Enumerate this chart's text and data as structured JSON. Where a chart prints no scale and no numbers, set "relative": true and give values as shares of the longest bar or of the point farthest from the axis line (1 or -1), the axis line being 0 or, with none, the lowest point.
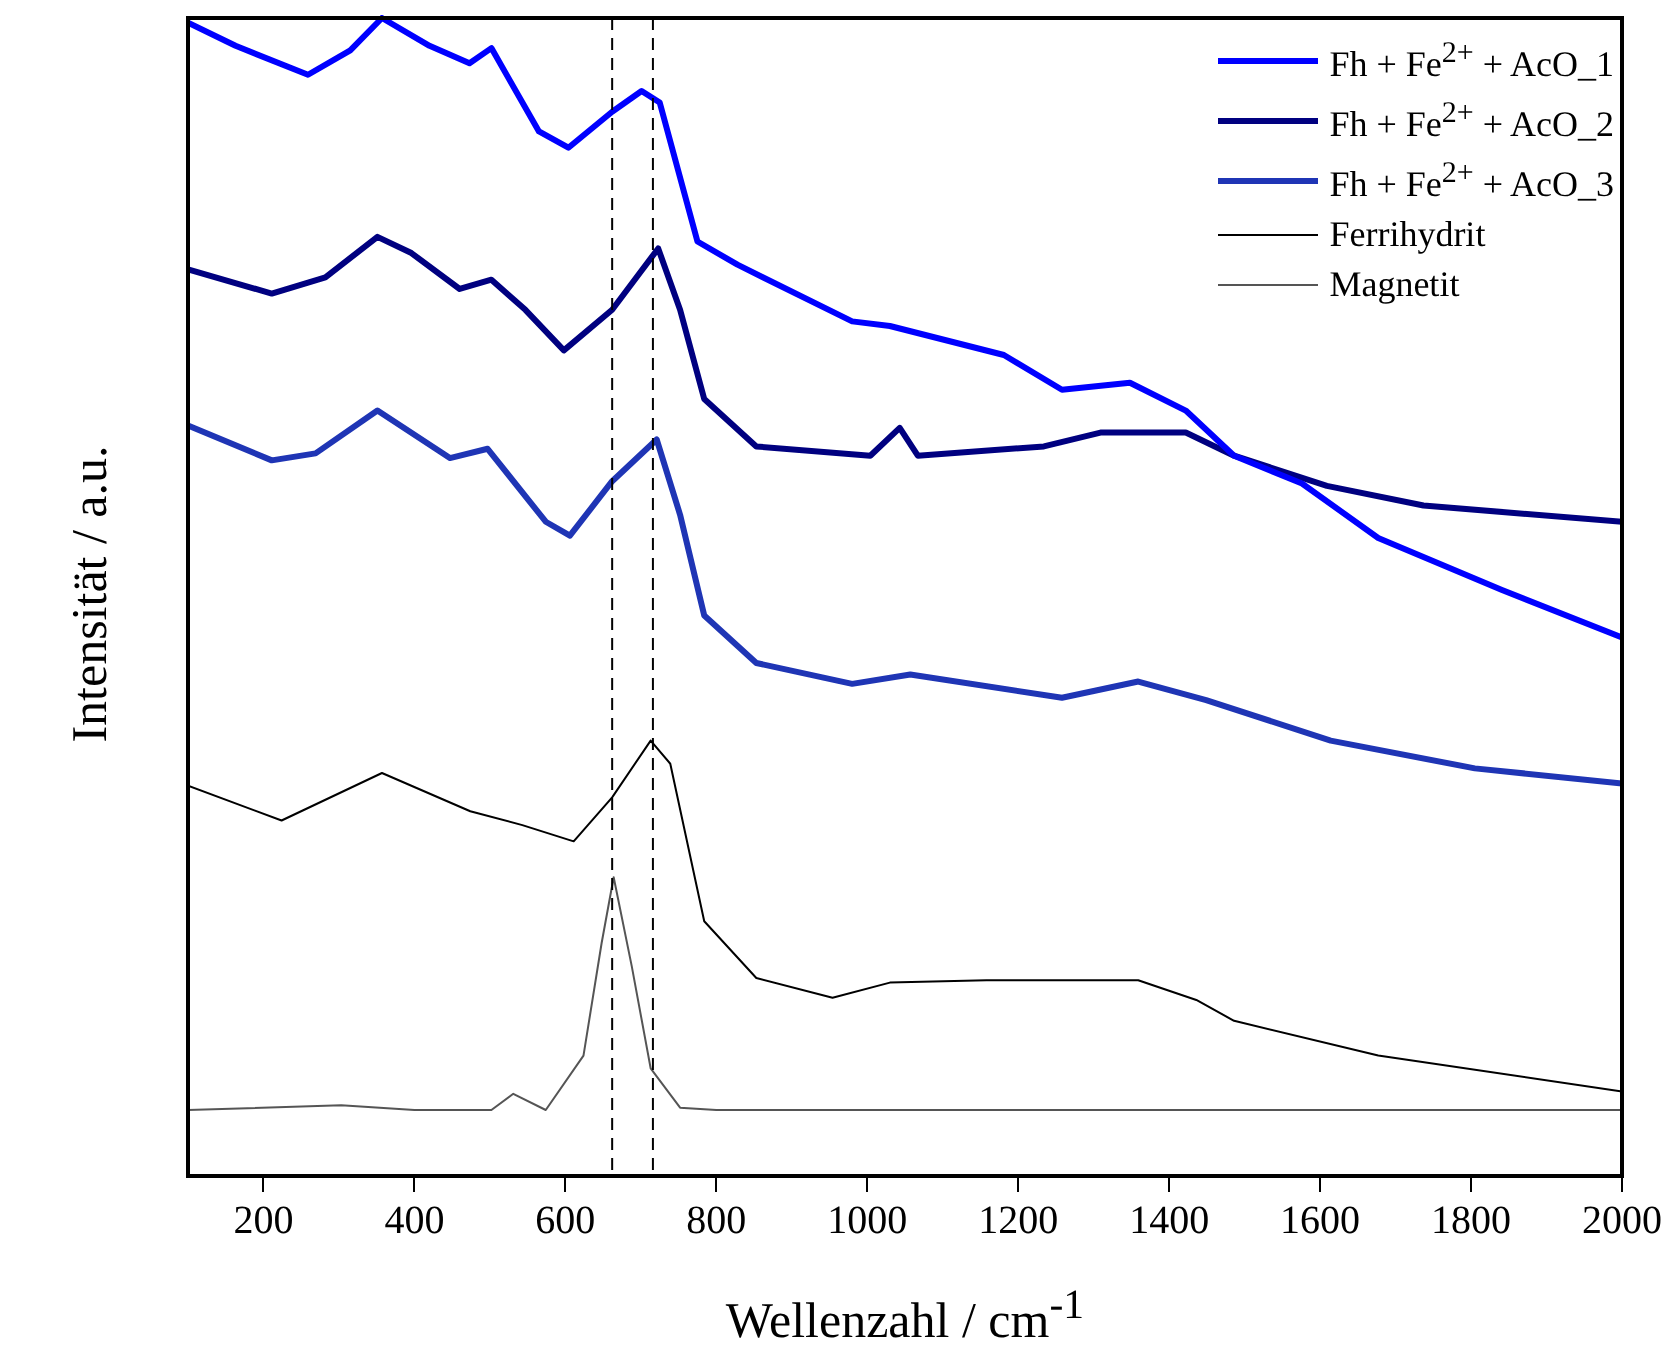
{
  "chart_data": {
    "type": "line",
    "relative": true,
    "xlabel": "Wellenzahl / cm$^{-1}$",
    "ylabel": "Intensität / a.u.",
    "xlim": [
      100,
      2000
    ],
    "xticks": [
      200,
      400,
      600,
      800,
      1000,
      1200,
      1400,
      1600,
      1800,
      2000
    ],
    "legend": "top right",
    "grid": false,
    "marker": "none",
    "line_style": "solid",
    "ref_lines": [
      {
        "axis": "x",
        "value": 662,
        "color": "#000000",
        "line_style": "dashed"
      },
      {
        "axis": "x",
        "value": 716,
        "color": "#000000",
        "line_style": "dashed"
      }
    ],
    "series": [
      {
        "name": "Fh + Fe$^{2+}$ + AcO_1",
        "color": "#0000ff",
        "x": [
          100,
          163,
          259,
          315,
          357,
          420,
          473,
          502,
          565,
          604,
          662,
          701,
          725,
          775,
          828,
          980,
          1030,
          1181,
          1258,
          1348,
          1422,
          1486,
          1576,
          1677,
          1841,
          2000
        ],
        "values": [
          0.996,
          0.976,
          0.951,
          0.972,
          1.0,
          0.976,
          0.961,
          0.974,
          0.902,
          0.888,
          0.919,
          0.937,
          0.927,
          0.807,
          0.787,
          0.738,
          0.734,
          0.709,
          0.679,
          0.685,
          0.661,
          0.622,
          0.598,
          0.551,
          0.506,
          0.465
        ]
      },
      {
        "name": "Fh + Fe$^{2+}$ + AcO_2",
        "color": "#000080",
        "x": [
          100,
          211,
          282,
          351,
          396,
          460,
          502,
          547,
          598,
          662,
          723,
          752,
          784,
          853,
          1004,
          1043,
          1067,
          1234,
          1309,
          1422,
          1486,
          1609,
          1737,
          2000
        ],
        "values": [
          0.783,
          0.762,
          0.776,
          0.811,
          0.797,
          0.766,
          0.774,
          0.748,
          0.713,
          0.748,
          0.801,
          0.748,
          0.671,
          0.63,
          0.622,
          0.646,
          0.622,
          0.63,
          0.642,
          0.642,
          0.622,
          0.596,
          0.579,
          0.565
        ]
      },
      {
        "name": "Fh + Fe$^{2+}$ + AcO_3",
        "color": "#1f35b5",
        "x": [
          100,
          211,
          269,
          351,
          447,
          497,
          574,
          606,
          662,
          721,
          752,
          784,
          853,
          980,
          1057,
          1258,
          1359,
          1449,
          1614,
          1805,
          2000
        ],
        "values": [
          0.648,
          0.618,
          0.624,
          0.661,
          0.62,
          0.628,
          0.565,
          0.553,
          0.6,
          0.636,
          0.571,
          0.484,
          0.443,
          0.425,
          0.433,
          0.413,
          0.427,
          0.411,
          0.376,
          0.352,
          0.339
        ]
      },
      {
        "name": "Ferrihydrit",
        "color": "#000000",
        "x": [
          100,
          224,
          357,
          474,
          543,
          611,
          662,
          713,
          739,
          784,
          853,
          954,
          1030,
          1158,
          1359,
          1436,
          1486,
          1677,
          2000
        ],
        "values": [
          0.337,
          0.307,
          0.348,
          0.315,
          0.303,
          0.289,
          0.327,
          0.376,
          0.356,
          0.22,
          0.171,
          0.154,
          0.167,
          0.169,
          0.169,
          0.152,
          0.134,
          0.104,
          0.073
        ]
      },
      {
        "name": "Magnetit",
        "color": "#555555",
        "x": [
          100,
          303,
          400,
          502,
          531,
          574,
          624,
          648,
          664,
          688,
          713,
          752,
          800,
          2000
        ],
        "values": [
          0.057,
          0.061,
          0.057,
          0.057,
          0.071,
          0.057,
          0.104,
          0.201,
          0.258,
          0.181,
          0.093,
          0.059,
          0.057,
          0.057
        ]
      }
    ]
  }
}
